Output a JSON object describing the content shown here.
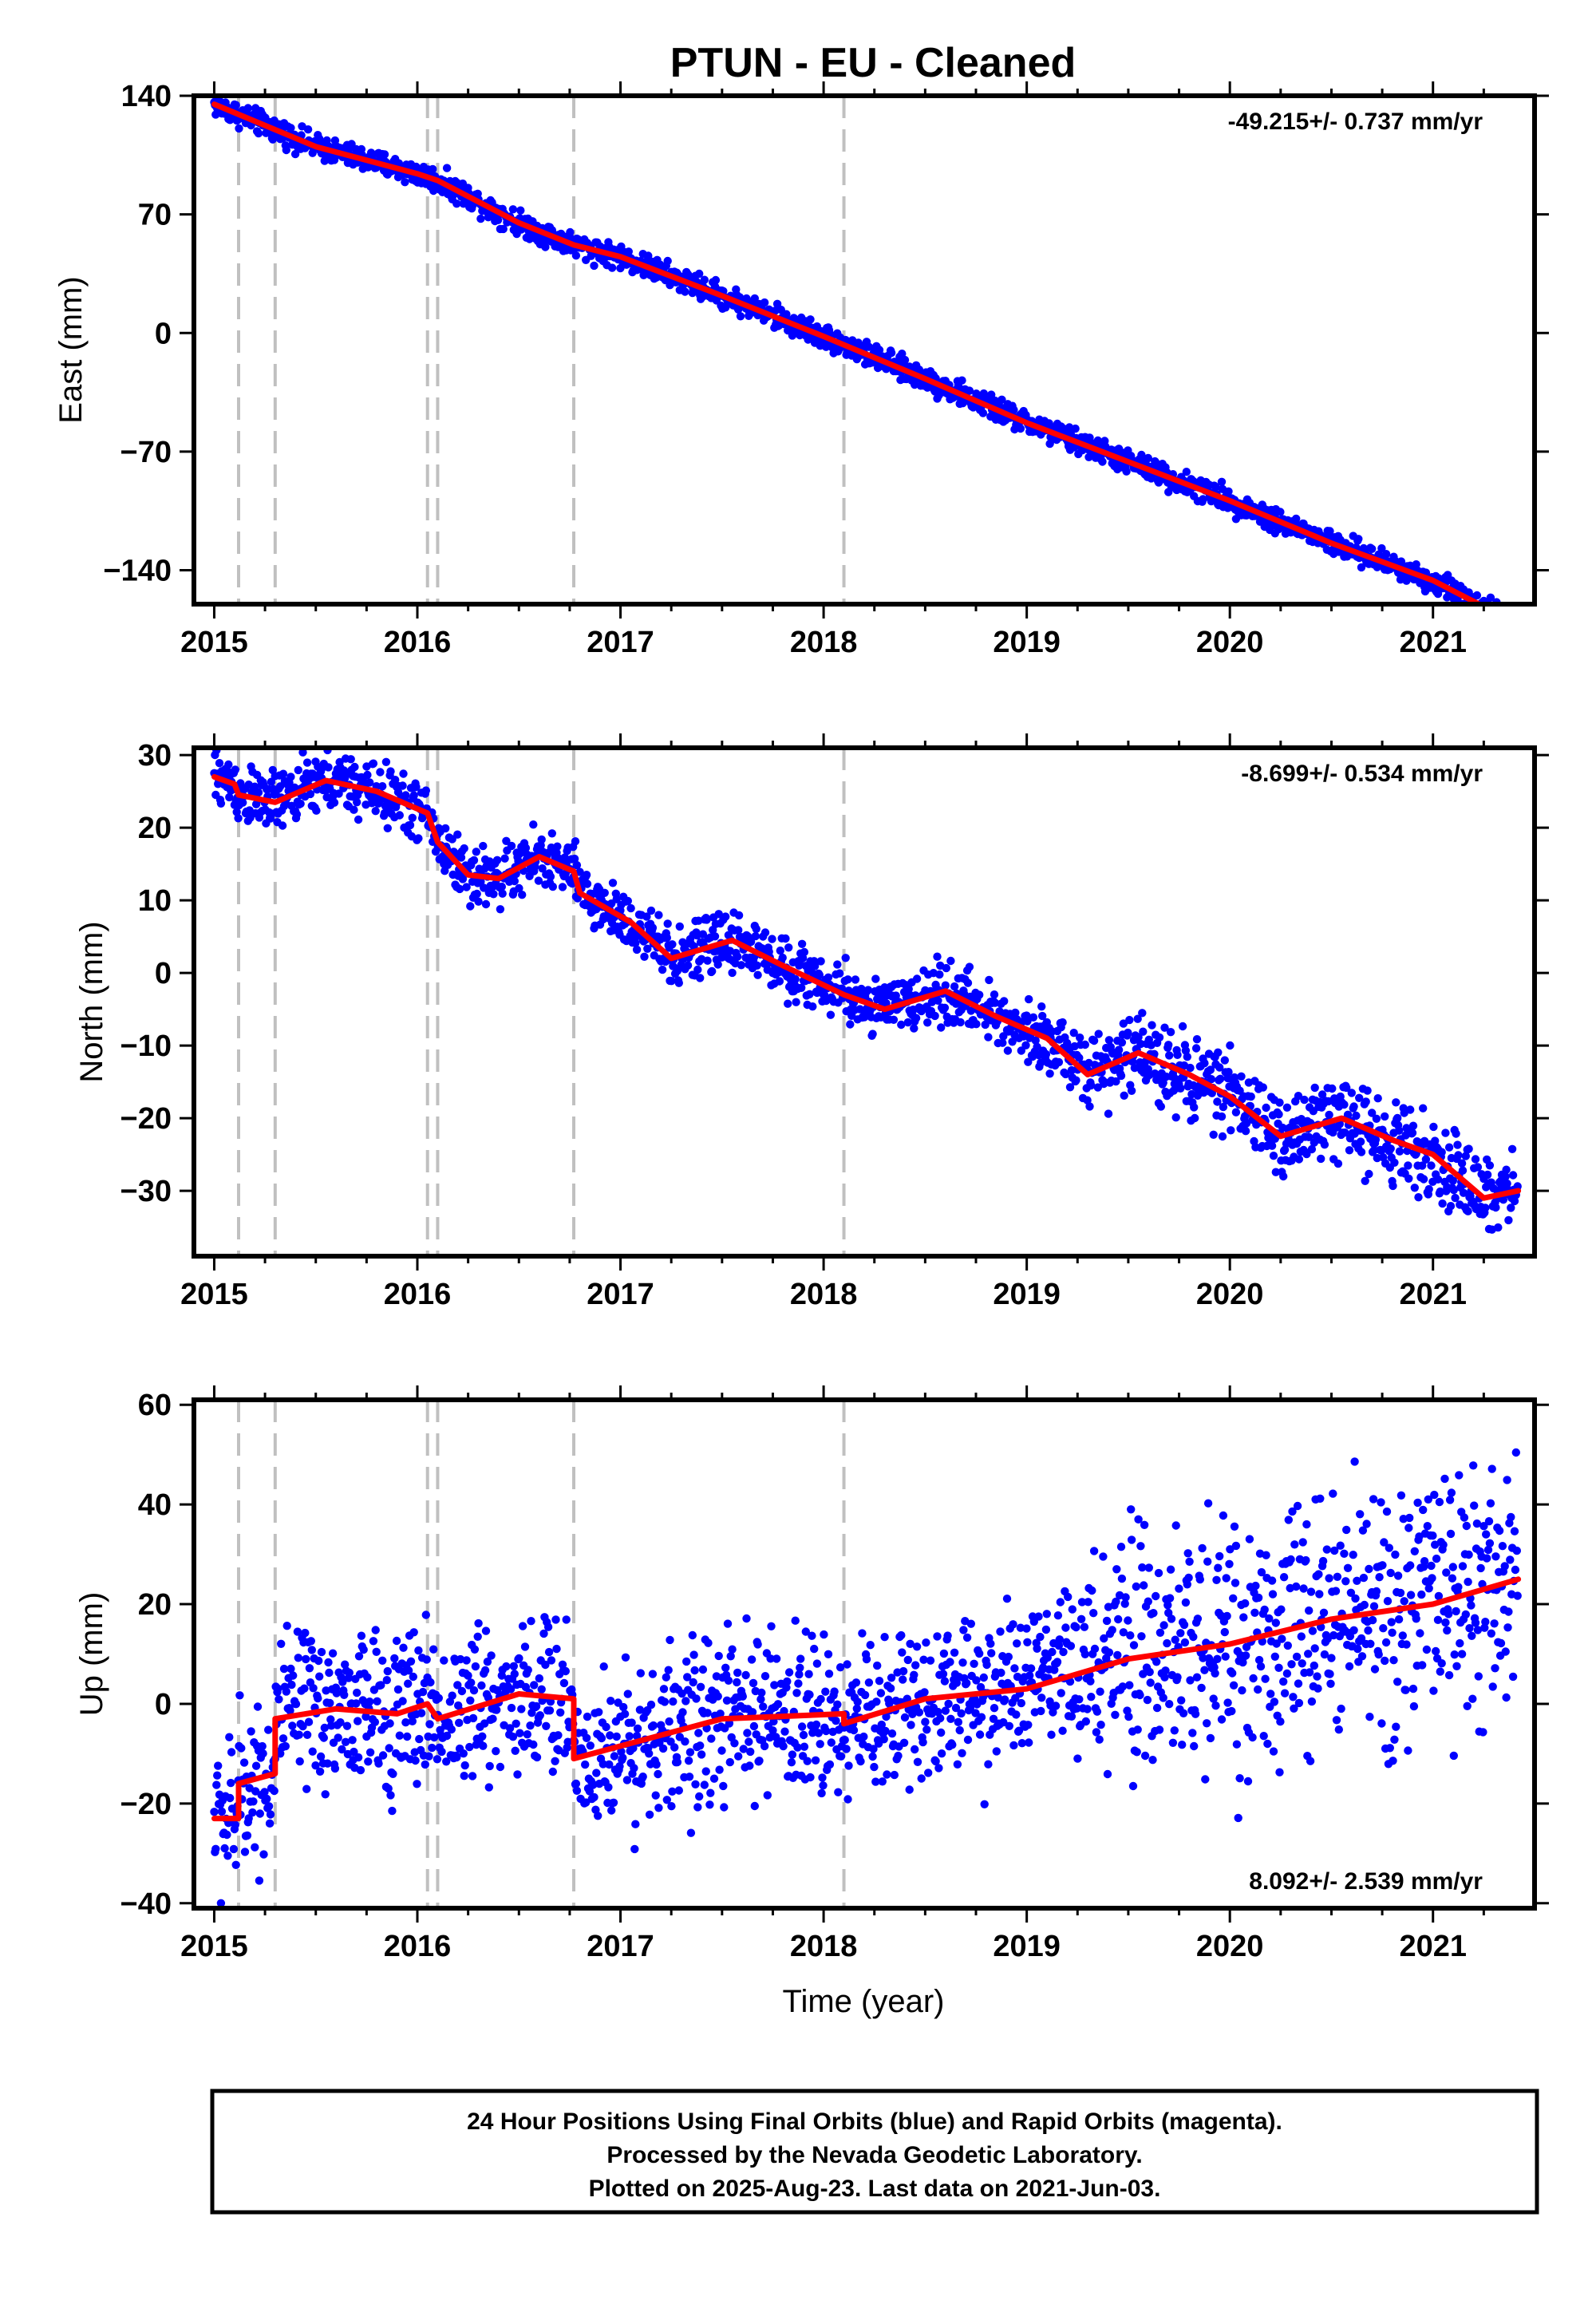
{
  "title": "PTUN  - EU - Cleaned",
  "footer": {
    "line1": "24 Hour Positions Using Final Orbits (blue) and Rapid Orbits (magenta).",
    "line2": "Processed by the Nevada Geodetic Laboratory.",
    "line3": "Plotted on 2025-Aug-23. Last data on 2021-Jun-03."
  },
  "chart_data": [
    {
      "type": "scatter",
      "component": "east",
      "ylabel": "East (mm)",
      "xlabel": "",
      "rate_label": "-49.215+/- 0.737 mm/yr",
      "rate_position": "top-right",
      "xlim": [
        2014.9,
        2021.5
      ],
      "ylim": [
        -160,
        140
      ],
      "xticks": [
        2015,
        2016,
        2017,
        2018,
        2019,
        2020,
        2021
      ],
      "xtick_labels": [
        "2015",
        "2016",
        "2017",
        "2018",
        "2019",
        "2020",
        "2021"
      ],
      "yticks": [
        140,
        70,
        0,
        -70,
        -140
      ],
      "ytick_labels": [
        "140",
        "70",
        "0",
        "−70",
        "−140"
      ],
      "grid": false,
      "points_color": "#0000ff",
      "model_color": "#ff0000",
      "break_color": "#c0c0c0",
      "break_epochs": [
        2015.12,
        2015.3,
        2016.05,
        2016.1,
        2016.77,
        2018.1
      ],
      "model": {
        "x": [
          2015.0,
          2015.5,
          2016.0,
          2016.1,
          2016.5,
          2016.77,
          2017.0,
          2017.5,
          2018.0,
          2018.5,
          2019.0,
          2019.5,
          2020.0,
          2020.5,
          2021.0,
          2021.42
        ],
        "y": [
          135,
          110,
          94,
          90,
          65,
          52,
          45,
          22,
          -2,
          -27,
          -53,
          -76,
          -99,
          -124,
          -146,
          -172
        ]
      },
      "noise_mm": 3.5
    },
    {
      "type": "scatter",
      "component": "north",
      "ylabel": "North (mm)",
      "xlabel": "",
      "rate_label": "-8.699+/- 0.534 mm/yr",
      "rate_position": "top-right",
      "xlim": [
        2014.9,
        2021.5
      ],
      "ylim": [
        -39,
        31
      ],
      "xticks": [
        2015,
        2016,
        2017,
        2018,
        2019,
        2020,
        2021
      ],
      "xtick_labels": [
        "2015",
        "2016",
        "2017",
        "2018",
        "2019",
        "2020",
        "2021"
      ],
      "yticks": [
        30,
        20,
        10,
        0,
        -10,
        -20,
        -30
      ],
      "ytick_labels": [
        "30",
        "20",
        "10",
        "0",
        "−10",
        "−20",
        "−30"
      ],
      "grid": false,
      "points_color": "#0000ff",
      "model_color": "#ff0000",
      "break_color": "#c0c0c0",
      "break_epochs": [
        2015.12,
        2015.3,
        2016.05,
        2016.1,
        2016.77,
        2018.1
      ],
      "model": {
        "x": [
          2015.0,
          2015.1,
          2015.12,
          2015.3,
          2015.55,
          2015.8,
          2016.05,
          2016.1,
          2016.25,
          2016.4,
          2016.6,
          2016.77,
          2016.8,
          2017.05,
          2017.25,
          2017.55,
          2017.8,
          2018.1,
          2018.3,
          2018.6,
          2018.85,
          2019.1,
          2019.3,
          2019.55,
          2019.8,
          2020.0,
          2020.25,
          2020.55,
          2020.8,
          2021.0,
          2021.25,
          2021.42
        ],
        "y": [
          27,
          26,
          24.5,
          23.5,
          26.5,
          25,
          22,
          18,
          13.5,
          13,
          16,
          14,
          11,
          7,
          2,
          4.5,
          1,
          -3,
          -5,
          -2.5,
          -6,
          -9,
          -14,
          -11,
          -14,
          -17,
          -22.5,
          -20,
          -23,
          -25,
          -31,
          -30
        ]
      },
      "noise_mm": 2.0
    },
    {
      "type": "scatter",
      "component": "up",
      "ylabel": "Up (mm)",
      "xlabel": "Time (year)",
      "rate_label": "8.092+/- 2.539 mm/yr",
      "rate_position": "bottom-right",
      "xlim": [
        2014.9,
        2021.5
      ],
      "ylim": [
        -41,
        61
      ],
      "xticks": [
        2015,
        2016,
        2017,
        2018,
        2019,
        2020,
        2021
      ],
      "xtick_labels": [
        "2015",
        "2016",
        "2017",
        "2018",
        "2019",
        "2020",
        "2021"
      ],
      "yticks": [
        60,
        40,
        20,
        0,
        -20,
        -40
      ],
      "ytick_labels": [
        "60",
        "40",
        "20",
        "0",
        "−20",
        "−40"
      ],
      "grid": false,
      "points_color": "#0000ff",
      "model_color": "#ff0000",
      "break_color": "#c0c0c0",
      "break_epochs": [
        2015.12,
        2015.3,
        2016.05,
        2016.1,
        2016.77,
        2018.1
      ],
      "model": {
        "x": [
          2015.0,
          2015.12,
          2015.12,
          2015.3,
          2015.3,
          2015.6,
          2015.9,
          2016.05,
          2016.1,
          2016.5,
          2016.77,
          2016.77,
          2017.5,
          2018.1,
          2018.1,
          2018.5,
          2019.0,
          2019.5,
          2020.0,
          2020.5,
          2021.0,
          2021.42
        ],
        "y": [
          -23,
          -23,
          -16,
          -14,
          -3,
          -1,
          -2,
          0,
          -3,
          2,
          1,
          -11,
          -3,
          -2,
          -4,
          1,
          3,
          9,
          12,
          17,
          20,
          25
        ]
      },
      "noise_mm": 8.0
    }
  ]
}
